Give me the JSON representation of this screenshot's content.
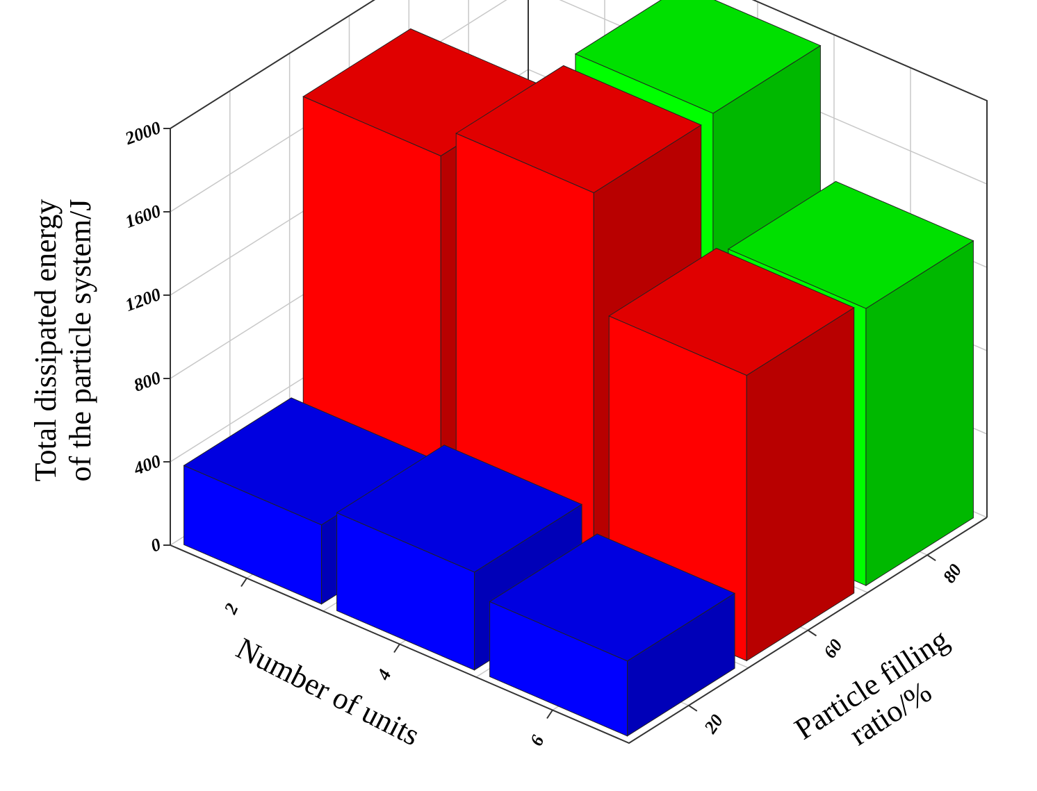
{
  "chart_data": {
    "type": "bar3d",
    "zlabel": [
      "Total dissipated energy",
      "of the particle system/J"
    ],
    "xlabel": "Number of units",
    "ylabel": [
      "Particle filling",
      "ratio/%"
    ],
    "categories": [
      "2",
      "4",
      "6"
    ],
    "series": [
      {
        "name": "20",
        "color": "#0000ff",
        "values": [
          380,
          470,
          360
        ]
      },
      {
        "name": "60",
        "color": "#ff0000",
        "values": [
          1790,
          1930,
          1370
        ]
      },
      {
        "name": "80",
        "color": "#00ff00",
        "values": [
          null,
          1950,
          1330
        ]
      }
    ],
    "zlim": [
      0,
      2000
    ],
    "zticks": [
      0,
      400,
      800,
      1200,
      1600,
      2000
    ],
    "grid": true
  }
}
